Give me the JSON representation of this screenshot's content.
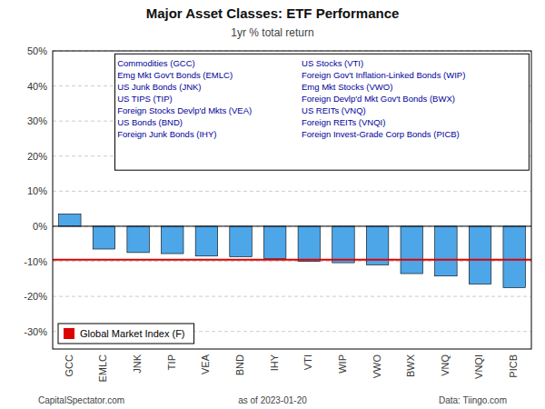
{
  "chart_data": {
    "type": "bar",
    "title": "Major Asset Classes: ETF Performance",
    "subtitle": "1yr % total return",
    "categories": [
      "GCC",
      "EMLC",
      "JNK",
      "TIP",
      "VEA",
      "BND",
      "IHY",
      "VTI",
      "WIP",
      "VWO",
      "BWX",
      "VNQ",
      "VNQI",
      "PICB"
    ],
    "values": [
      3.5,
      -6.5,
      -7.5,
      -7.8,
      -8.5,
      -8.7,
      -9.2,
      -10.0,
      -10.4,
      -11.0,
      -13.5,
      -14.2,
      -16.5,
      -17.5
    ],
    "color": "#4da6e8",
    "ylim": [
      -35,
      50
    ],
    "yticks": [
      {
        "value": -30,
        "label": "-30%"
      },
      {
        "value": -20,
        "label": "-20%"
      },
      {
        "value": -10,
        "label": "-10%"
      },
      {
        "value": 0,
        "label": "0%"
      },
      {
        "value": 10,
        "label": "10%"
      },
      {
        "value": 20,
        "label": "20%"
      },
      {
        "value": 30,
        "label": "30%"
      },
      {
        "value": 40,
        "label": "40%"
      },
      {
        "value": 50,
        "label": "50%"
      }
    ],
    "grid": true,
    "hline": {
      "name": "Global Market Index (F)",
      "value": -9.55,
      "color": "#dd0000"
    },
    "legend": "lower left",
    "legend_items": [
      [
        "Commodities (GCC)",
        "Emg Mkt Gov't Bonds (EMLC)",
        "US Junk Bonds (JNK)",
        "US TIPS (TIP)",
        "Foreign Stocks Devlp'd Mkts (VEA)",
        "US Bonds (BND)",
        "Foreign Junk Bonds (IHY)"
      ],
      [
        "US Stocks (VTI)",
        "Foreign Gov't Inflation-Linked Bonds (WIP)",
        "Emg Mkt Stocks (VWO)",
        "Foreign Devlp'd Mkt Gov't Bonds (BWX)",
        "US REITs (VNQ)",
        "Foreign REITs (VNQI)",
        "Foreign Invest-Grade Corp Bonds (PICB)"
      ]
    ],
    "footer": [
      "CapitalSpectator.com",
      "as of  2023-01-20",
      "Data: Tiingo.com"
    ]
  }
}
